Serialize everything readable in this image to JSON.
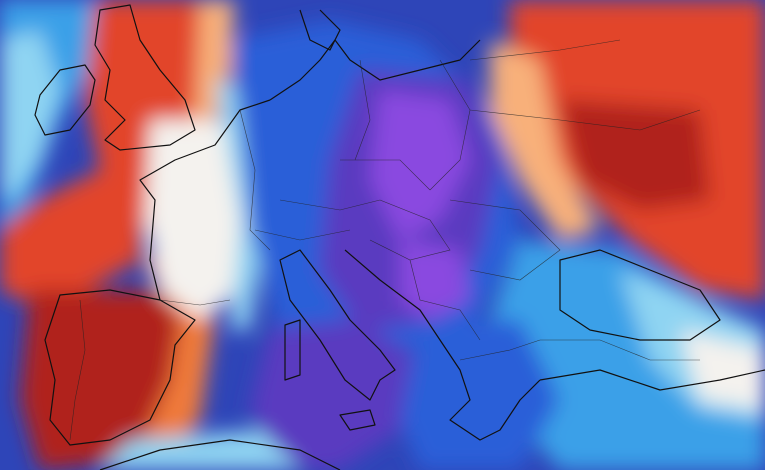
{
  "map": {
    "type": "temperature-anomaly",
    "region": "Europe",
    "colors": {
      "warm_dark": "#b0201a",
      "warm": "#e2452a",
      "warm_mid": "#f07a3a",
      "warm_light": "#f8b07a",
      "neutral": "#f4f2ee",
      "cool_light": "#8fd4f2",
      "cool": "#3aa0e8",
      "cold": "#2a5fd8",
      "colder": "#2e45b8",
      "coldest": "#5a3ac0",
      "extreme_cold": "#8a4ae0",
      "coastline": "#111111",
      "borders": "#222222"
    },
    "legend_visible": false
  }
}
